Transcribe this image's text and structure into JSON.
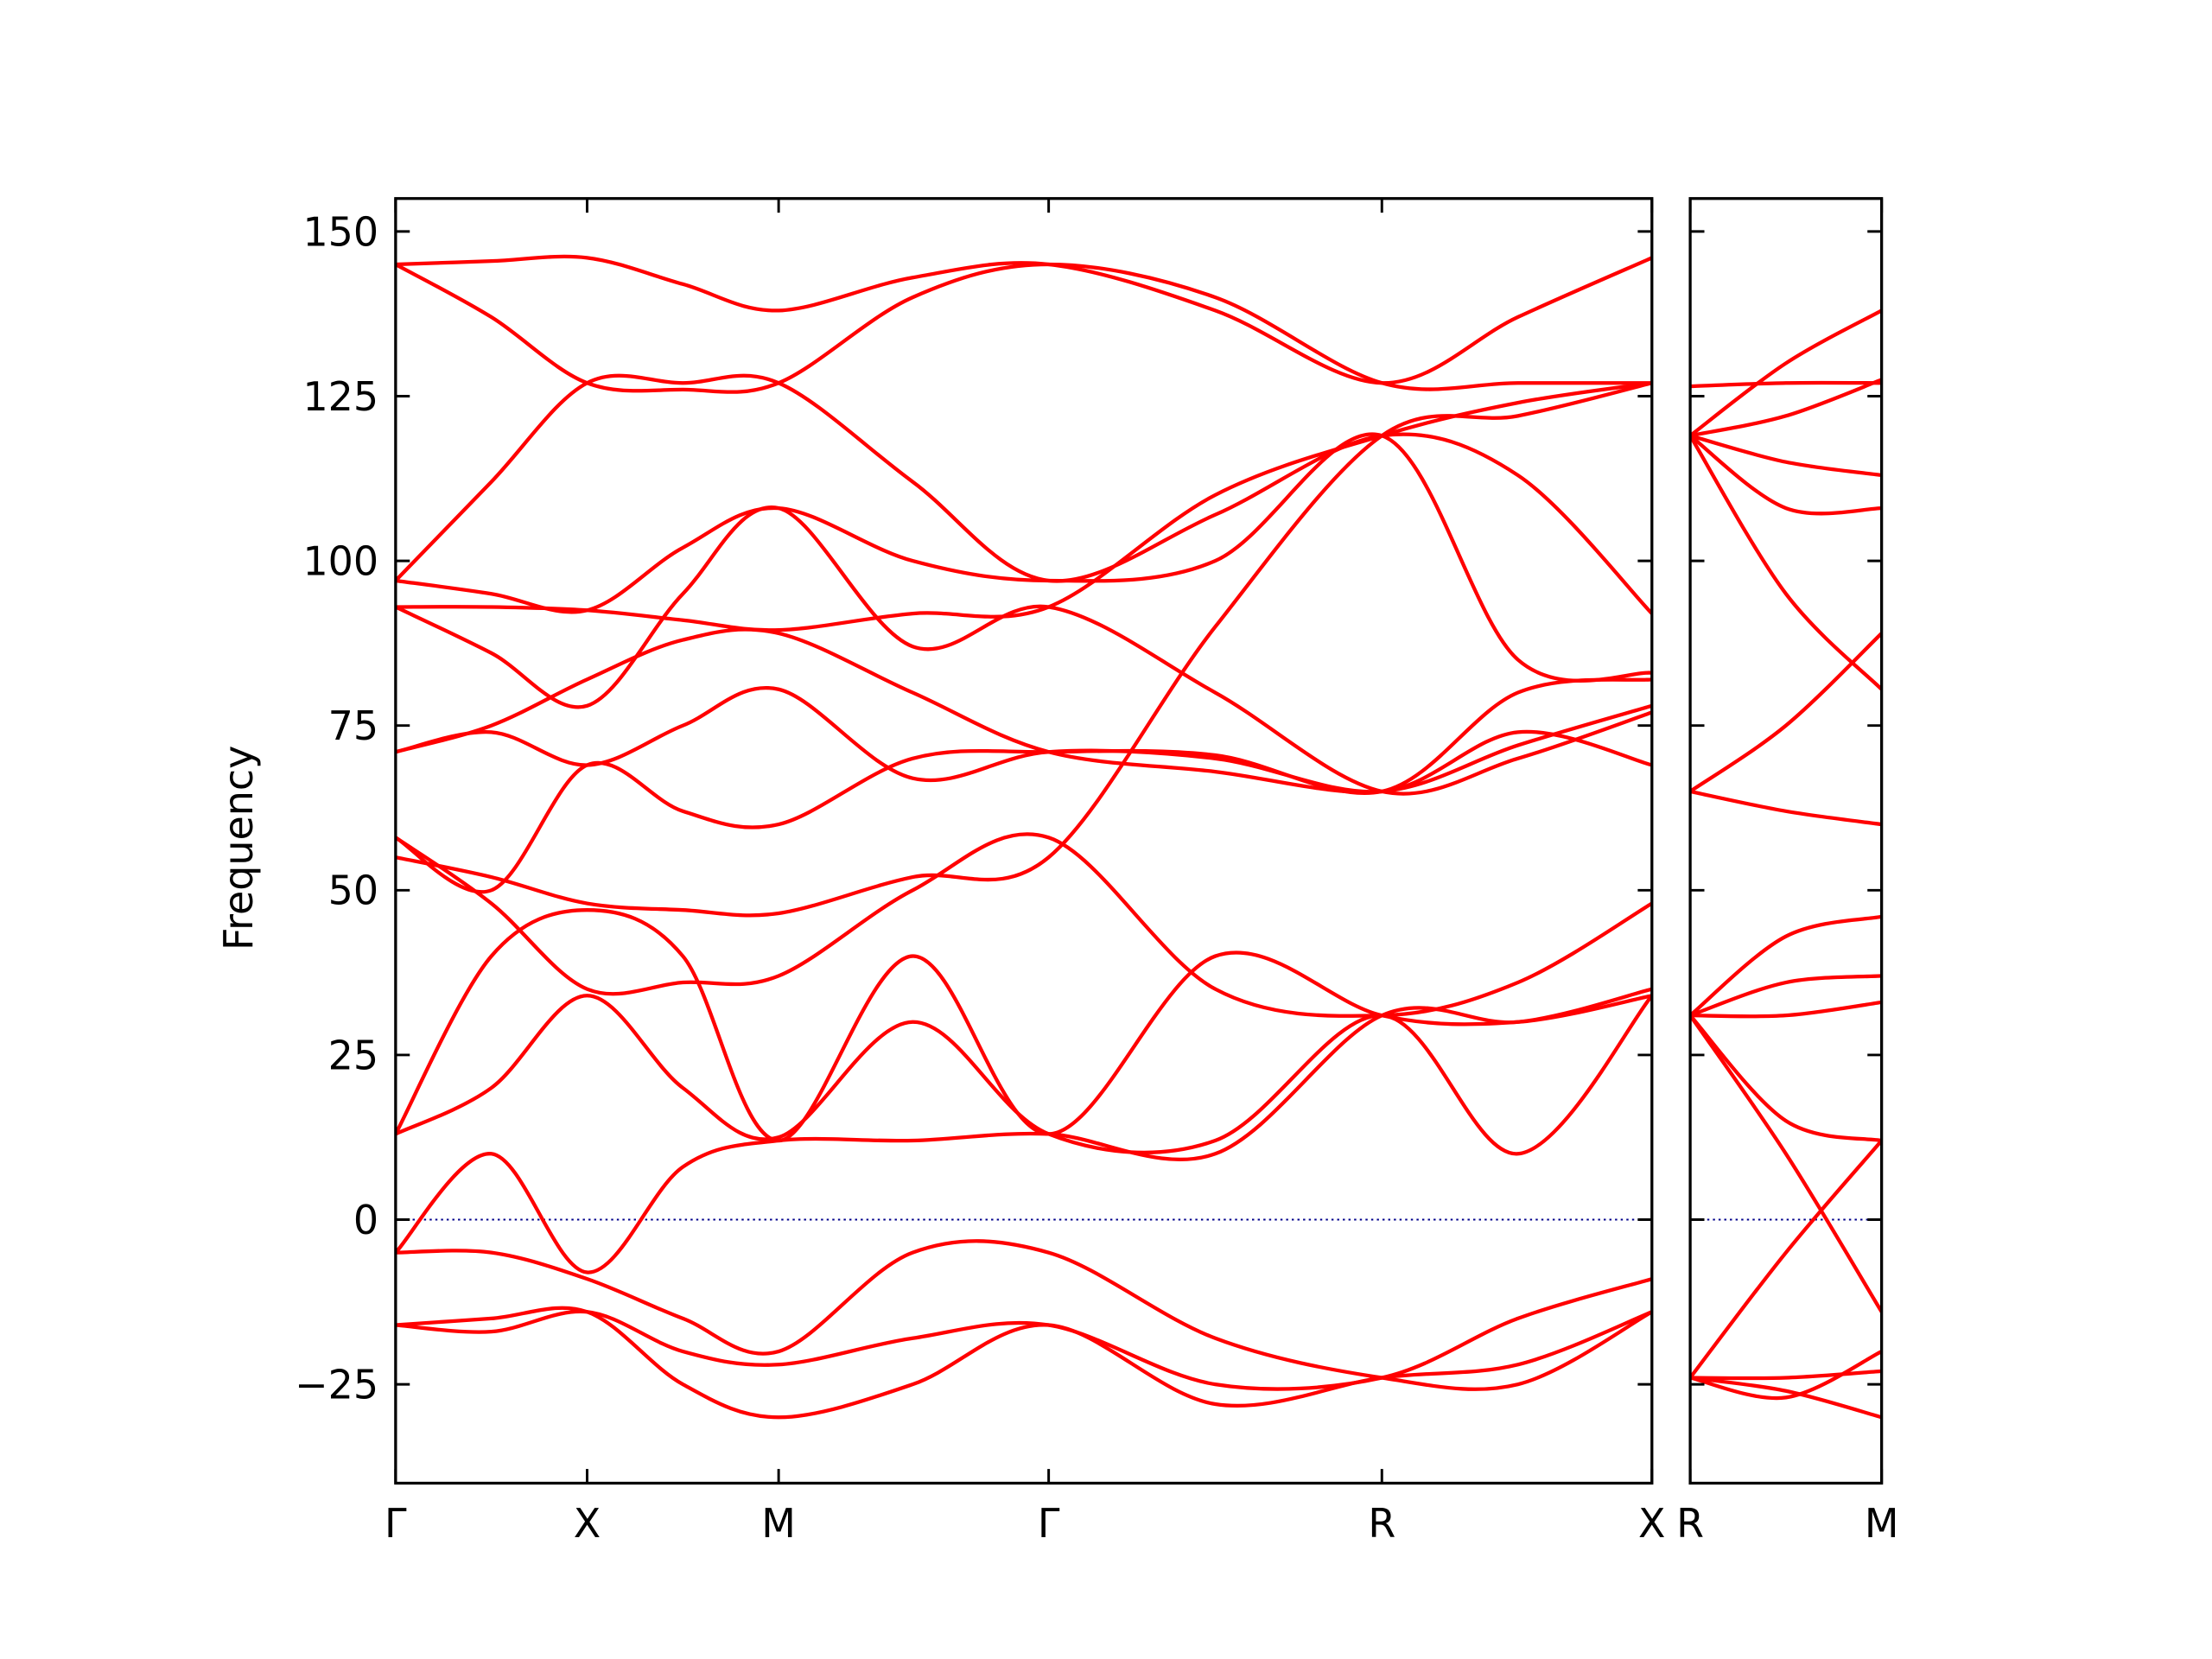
{
  "chart_data": [
    {
      "type": "line",
      "y_label": "Frequency",
      "color": "#ff0000",
      "hline": 0,
      "hline_color": "#00008b",
      "x": [
        0,
        0.5,
        1,
        1.5,
        2,
        2.7,
        3.41,
        4.28,
        5.15,
        5.86,
        6.56
      ],
      "xlim": [
        0,
        6.56
      ],
      "xticks": [
        {
          "value": 0,
          "label": "Γ"
        },
        {
          "value": 1,
          "label": "X"
        },
        {
          "value": 2,
          "label": "M"
        },
        {
          "value": 3.41,
          "label": "Γ"
        },
        {
          "value": 5.15,
          "label": "R"
        },
        {
          "value": 6.56,
          "label": "X"
        }
      ],
      "ylim": [
        -40,
        155
      ],
      "yticks": [
        -25,
        0,
        25,
        50,
        75,
        100,
        125,
        150
      ],
      "yticks_labels": {
        "value": -25,
        "label": "−25"
      },
      "series": [
        {
          "values": [
            145,
            145.5,
            146,
            142,
            138,
            143,
            145,
            138,
            127,
            137,
            146
          ]
        },
        {
          "values": [
            145,
            137,
            127,
            126,
            127,
            140,
            145,
            140,
            127,
            127,
            127
          ]
        },
        {
          "values": [
            97,
            112,
            127,
            127,
            127,
            112,
            97,
            107,
            119,
            113,
            92
          ]
        },
        {
          "values": [
            97,
            95,
            92.5,
            102,
            108,
            100,
            97,
            100,
            119,
            85,
            83
          ]
        },
        {
          "values": [
            93,
            93,
            92.5,
            91,
            89.5,
            92,
            93,
            110,
            119,
            124,
            127
          ]
        },
        {
          "values": [
            93,
            86,
            78,
            95,
            108,
            87,
            93,
            80,
            65,
            70,
            77
          ]
        },
        {
          "values": [
            71,
            75,
            82,
            88,
            89,
            80,
            71,
            68,
            65,
            72,
            78
          ]
        },
        {
          "values": [
            71,
            74,
            69,
            75,
            80.5,
            67,
            71,
            70,
            65,
            74,
            69
          ]
        },
        {
          "values": [
            58,
            50,
            69,
            62,
            60,
            70,
            71,
            70.5,
            65,
            80,
            82
          ]
        },
        {
          "values": [
            55,
            52,
            48,
            47,
            46.5,
            52,
            55,
            90,
            119,
            122,
            127
          ]
        },
        {
          "values": [
            58,
            48,
            35,
            36,
            37,
            50,
            58,
            35,
            31,
            36,
            48
          ]
        },
        {
          "values": [
            13,
            40,
            47,
            40,
            12,
            40,
            13,
            40,
            31,
            30,
            34
          ]
        },
        {
          "values": [
            13,
            20,
            34,
            20,
            12.5,
            30,
            13,
            12,
            31,
            10,
            34
          ]
        },
        {
          "values": [
            -5,
            10,
            -8,
            8,
            12,
            12,
            13,
            10,
            31,
            30,
            35
          ]
        },
        {
          "values": [
            -5,
            -5,
            -9,
            -15,
            -20,
            -5,
            -5,
            -18,
            -24,
            -25,
            -14
          ]
        },
        {
          "values": [
            -16,
            -17,
            -14,
            -20,
            -22,
            -18,
            -16,
            -25,
            -24,
            -15,
            -9
          ]
        },
        {
          "values": [
            -16,
            -15,
            -14,
            -25,
            -30,
            -25,
            -16,
            -28,
            -24,
            -22,
            -14
          ]
        }
      ]
    },
    {
      "type": "line",
      "color": "#ff0000",
      "hline": 0,
      "hline_color": "#00008b",
      "x": [
        0,
        0.5,
        1
      ],
      "xlim": [
        0,
        1
      ],
      "xticks": [
        {
          "value": 0,
          "label": "R"
        },
        {
          "value": 1,
          "label": "M"
        }
      ],
      "ylim": [
        -40,
        155
      ],
      "yticks": [
        -25,
        0,
        25,
        50,
        75,
        100,
        125,
        150
      ],
      "series": [
        {
          "values": [
            126.5,
            127,
            127
          ]
        },
        {
          "values": [
            119,
            130,
            138
          ]
        },
        {
          "values": [
            119,
            122,
            127.5
          ]
        },
        {
          "values": [
            119,
            115,
            113
          ]
        },
        {
          "values": [
            119,
            108,
            108
          ]
        },
        {
          "values": [
            119,
            95,
            80.5
          ]
        },
        {
          "values": [
            65,
            75,
            89
          ]
        },
        {
          "values": [
            65,
            62,
            60
          ]
        },
        {
          "values": [
            31,
            43,
            46
          ]
        },
        {
          "values": [
            31,
            36,
            37
          ]
        },
        {
          "values": [
            31,
            31,
            33
          ]
        },
        {
          "values": [
            31,
            15,
            12
          ]
        },
        {
          "values": [
            31,
            10,
            -14
          ]
        },
        {
          "values": [
            -24,
            -5,
            12
          ]
        },
        {
          "values": [
            -24,
            -27,
            -20
          ]
        },
        {
          "values": [
            -24,
            -24,
            -23
          ]
        },
        {
          "values": [
            -24,
            -26,
            -30
          ]
        }
      ]
    }
  ]
}
